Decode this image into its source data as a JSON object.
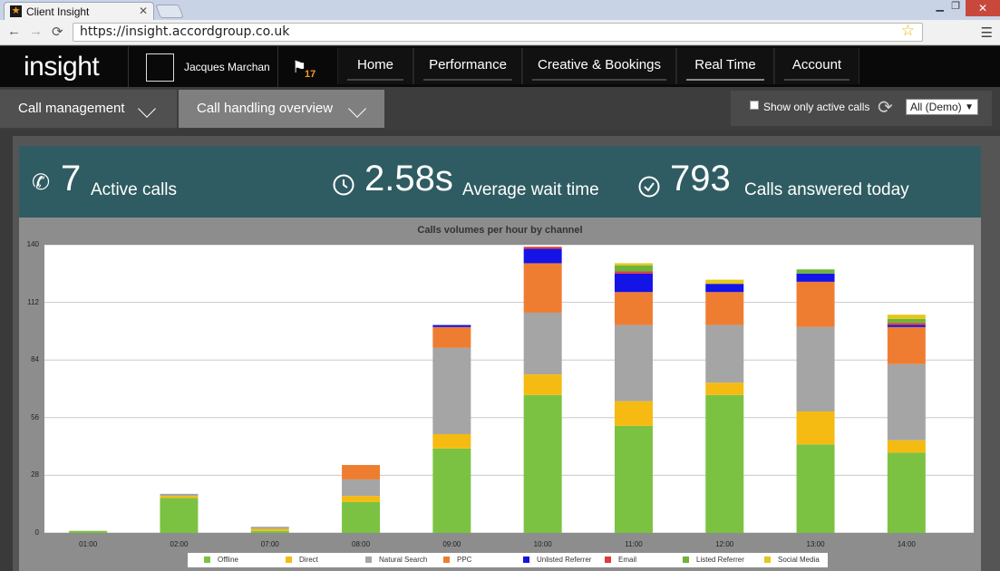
{
  "browser": {
    "tab_title": "Client Insight",
    "tab_close": "✕",
    "url": "https://insight.accordgroup.co.uk",
    "min": "▁",
    "max": "❐",
    "close": "✕"
  },
  "header": {
    "logo": "insight",
    "user_name": "Jacques Marchan",
    "notification_count": "17",
    "nav": [
      "Home",
      "Performance",
      "Creative & Bookings",
      "Real Time",
      "Account"
    ],
    "active_nav": "Real Time"
  },
  "subnav": {
    "tabs": [
      "Call management",
      "Call handling overview"
    ],
    "active_tab": "Call handling overview",
    "show_active_label": "Show only active calls",
    "filter_value": "All (Demo)"
  },
  "kpis": {
    "active_calls_value": "7",
    "active_calls_label": "Active calls",
    "wait_value": "2.58s",
    "wait_label": "Average wait time",
    "answered_value": "793",
    "answered_label": "Calls answered today"
  },
  "chart_data": {
    "type": "bar",
    "stacked": true,
    "title": "Calls volumes per hour by channel",
    "categories": [
      "01:00",
      "02:00",
      "07:00",
      "08:00",
      "09:00",
      "10:00",
      "11:00",
      "12:00",
      "13:00",
      "14:00"
    ],
    "ylim": [
      0,
      140
    ],
    "yticks": [
      0,
      28,
      56,
      84,
      112,
      140
    ],
    "grid": true,
    "legend_position": "bottom",
    "series": [
      {
        "name": "Offline",
        "color": "#7cc242",
        "values": [
          1,
          17,
          1,
          15,
          41,
          67,
          52,
          67,
          43,
          39
        ]
      },
      {
        "name": "Direct",
        "color": "#f5bb12",
        "values": [
          0,
          1,
          1,
          3,
          7,
          10,
          12,
          6,
          16,
          6
        ]
      },
      {
        "name": "Natural Search",
        "color": "#a5a5a5",
        "values": [
          0,
          1,
          1,
          8,
          42,
          30,
          37,
          28,
          41,
          37
        ]
      },
      {
        "name": "PPC",
        "color": "#ef7d31",
        "values": [
          0,
          0,
          0,
          7,
          10,
          24,
          16,
          16,
          22,
          18
        ]
      },
      {
        "name": "Unlisted Referrer",
        "color": "#1414e6",
        "values": [
          0,
          0,
          0,
          0,
          1,
          7,
          9,
          4,
          4,
          1
        ]
      },
      {
        "name": "Email",
        "color": "#e03a3a",
        "values": [
          0,
          0,
          0,
          0,
          0,
          1,
          1,
          0,
          0,
          1
        ]
      },
      {
        "name": "Listed Referrer",
        "color": "#6fb43a",
        "values": [
          0,
          0,
          0,
          0,
          0,
          0,
          3,
          0,
          2,
          2
        ]
      },
      {
        "name": "Social Media",
        "color": "#e6c619",
        "values": [
          0,
          0,
          0,
          0,
          0,
          0,
          1,
          2,
          0,
          2
        ]
      }
    ]
  }
}
